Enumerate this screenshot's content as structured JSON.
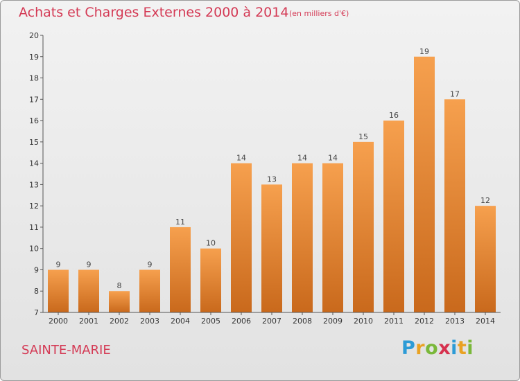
{
  "header": {
    "title": "Achats et Charges Externes 2000 à 2014",
    "subtitle": "(en milliers d'€)"
  },
  "footer": {
    "city": "SAINTE-MARIE",
    "brand": "Proxiti"
  },
  "colors": {
    "bar_top": "#f6a04e",
    "bar_bottom": "#c9691c",
    "title": "#d43a55"
  },
  "chart_data": {
    "type": "bar",
    "title": "Achats et Charges Externes 2000 à 2014",
    "subtitle": "(en milliers d'€)",
    "xlabel": "",
    "ylabel": "",
    "categories": [
      "2000",
      "2001",
      "2002",
      "2003",
      "2004",
      "2005",
      "2006",
      "2007",
      "2008",
      "2009",
      "2010",
      "2011",
      "2012",
      "2013",
      "2014"
    ],
    "values": [
      9,
      9,
      8,
      9,
      11,
      10,
      14,
      13,
      14,
      14,
      15,
      16,
      19,
      17,
      12
    ],
    "ylim": [
      7,
      20
    ],
    "yticks": [
      7,
      8,
      9,
      10,
      11,
      12,
      13,
      14,
      15,
      16,
      17,
      18,
      19,
      20
    ],
    "grid": false,
    "data_labels": true
  }
}
